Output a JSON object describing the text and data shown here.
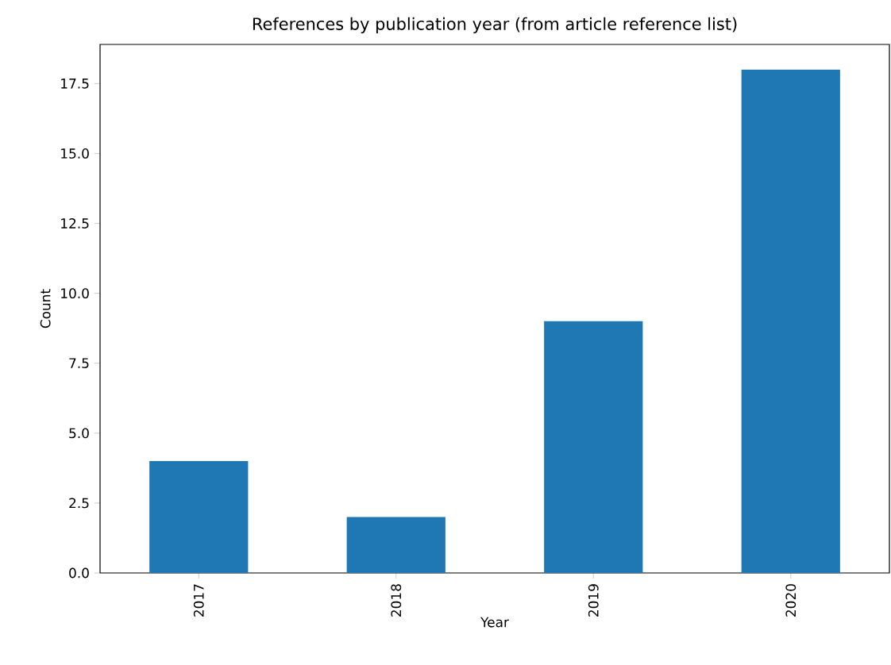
{
  "chart_data": {
    "type": "bar",
    "title": "References by publication year (from article reference list)",
    "xlabel": "Year",
    "ylabel": "Count",
    "categories": [
      "2017",
      "2018",
      "2019",
      "2020"
    ],
    "values": [
      4,
      2,
      9,
      18
    ],
    "color": "#1f77b4",
    "ylim": [
      0,
      18.9
    ],
    "yticks": [
      {
        "value": 0,
        "label": "0.0"
      },
      {
        "value": 2.5,
        "label": "2.5"
      },
      {
        "value": 5,
        "label": "5.0"
      },
      {
        "value": 7.5,
        "label": "7.5"
      },
      {
        "value": 10,
        "label": "10.0"
      },
      {
        "value": 12.5,
        "label": "12.5"
      },
      {
        "value": 15,
        "label": "15.0"
      },
      {
        "value": 17.5,
        "label": "17.5"
      }
    ]
  }
}
